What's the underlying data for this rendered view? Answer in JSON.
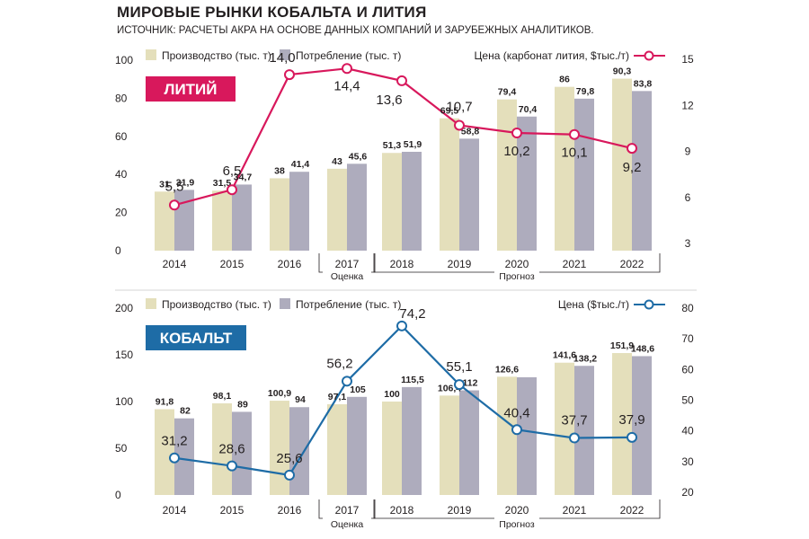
{
  "header": {
    "title": "МИРОВЫЕ РЫНКИ КОБАЛЬТА И ЛИТИЯ",
    "subtitle": "ИСТОЧНИК: РАСЧЕТЫ АКРА НА ОСНОВЕ ДАННЫХ КОМПАНИЙ И ЗАРУБЕЖНЫХ АНАЛИТИКОВ."
  },
  "colors": {
    "production": "#e4dfbb",
    "consumption": "#aeacbd",
    "lithium_line": "#d8185c",
    "cobalt_line": "#1e6ca6",
    "text": "#231f20"
  },
  "chart_data": [
    {
      "type": "bar",
      "secondary_type": "line",
      "label": "ЛИТИЙ",
      "categories": [
        "2014",
        "2015",
        "2016",
        "2017",
        "2018",
        "2019",
        "2020",
        "2021",
        "2022"
      ],
      "series": [
        {
          "name": "Производство (тыс. т)",
          "values": [
            31,
            31.5,
            38,
            43,
            51.3,
            69.5,
            79.4,
            86,
            90.3
          ],
          "labels": [
            "31",
            "31,5",
            "38",
            "43",
            "51,3",
            "69,5",
            "79,4",
            "86",
            "90,3"
          ]
        },
        {
          "name": "Потребление (тыс. т)",
          "values": [
            31.9,
            34.7,
            41.4,
            45.6,
            51.9,
            58.8,
            70.4,
            79.8,
            83.8
          ],
          "labels": [
            "31,9",
            "34,7",
            "41,4",
            "45,6",
            "51,9",
            "58,8",
            "70,4",
            "79,8",
            "83,8"
          ]
        }
      ],
      "line": {
        "name": "Цена (карбонат лития, $тыс./т)",
        "values": [
          5.5,
          6.5,
          14.0,
          14.4,
          13.6,
          10.7,
          10.2,
          10.1,
          9.2
        ],
        "labels": [
          "5,5",
          "6,5",
          "14,0",
          "14,4",
          "13,6",
          "10,7",
          "10,2",
          "10,1",
          "9,2"
        ]
      },
      "ylim_left": [
        0,
        100
      ],
      "ylim_right": [
        3,
        15
      ],
      "yticks_left": [
        "0",
        "20",
        "40",
        "60",
        "80",
        "100"
      ],
      "yticks_right": [
        "3",
        "6",
        "9",
        "12",
        "15"
      ],
      "group_labels": [
        {
          "text": "Оценка",
          "from": "2017",
          "to": "2017"
        },
        {
          "text": "Прогноз",
          "from": "2018",
          "to": "2022"
        }
      ],
      "grid": false,
      "legend_placement": "top"
    },
    {
      "type": "bar",
      "secondary_type": "line",
      "label": "КОБАЛЬТ",
      "categories": [
        "2014",
        "2015",
        "2016",
        "2017",
        "2018",
        "2019",
        "2020",
        "2021",
        "2022"
      ],
      "series": [
        {
          "name": "Производство (тыс. т)",
          "values": [
            91.8,
            98.1,
            100.9,
            97.1,
            100,
            106.4,
            126.6,
            141.6,
            151.9
          ],
          "labels": [
            "91,8",
            "98,1",
            "100,9",
            "97,1",
            "100",
            "106,4",
            "126,6",
            "141,6",
            "151,9"
          ]
        },
        {
          "name": "Потребление (тыс. т)",
          "values": [
            82,
            89,
            94,
            105,
            115.5,
            112,
            126,
            138.2,
            148.6
          ],
          "labels": [
            "82",
            "89",
            "94",
            "105",
            "115,5",
            "112",
            "",
            "138,2",
            "148,6"
          ]
        }
      ],
      "line": {
        "name": "Цена ($тыс./т)",
        "values": [
          31.2,
          28.6,
          25.6,
          56.2,
          74.2,
          55.1,
          40.4,
          37.7,
          37.9
        ],
        "labels": [
          "31,2",
          "28,6",
          "25,6",
          "56,2",
          "74,2",
          "55,1",
          "40,4",
          "37,7",
          "37,9"
        ]
      },
      "ylim_left": [
        0,
        200
      ],
      "ylim_right": [
        20,
        80
      ],
      "yticks_left": [
        "0",
        "50",
        "100",
        "150",
        "200"
      ],
      "yticks_right": [
        "20",
        "30",
        "40",
        "50",
        "60",
        "70",
        "80"
      ],
      "group_labels": [
        {
          "text": "Оценка",
          "from": "2017",
          "to": "2017"
        },
        {
          "text": "Прогноз",
          "from": "2018",
          "to": "2022"
        }
      ],
      "grid": false,
      "legend_placement": "top"
    }
  ]
}
